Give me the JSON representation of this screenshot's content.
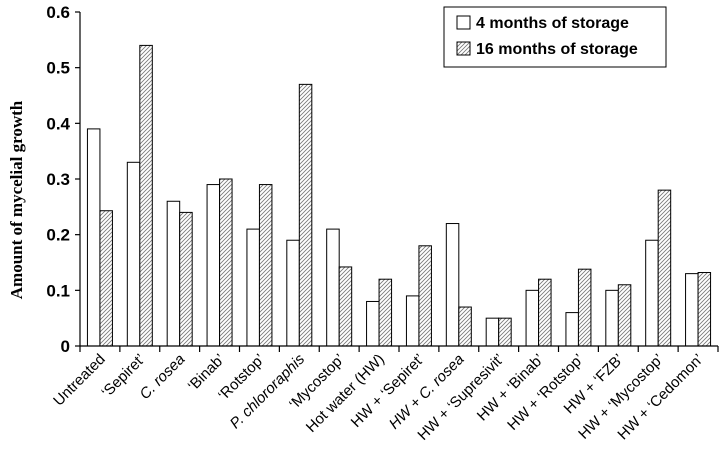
{
  "chart_data": {
    "type": "bar",
    "title": "",
    "xlabel": "",
    "ylabel": "Amount of mycelial growth",
    "ylim": [
      0,
      0.6
    ],
    "yticks": [
      "0",
      "0.1",
      "0.2",
      "0.3",
      "0.4",
      "0.5",
      "0.6"
    ],
    "grid": false,
    "legend_position": "top-right",
    "categories": [
      "Untreated",
      "‘Sepiret’",
      "C. rosea",
      "‘Binab’",
      "‘Rotstop’",
      "P. chlororaphis",
      "‘Mycostop’",
      "Hot water (HW)",
      "HW + ‘Sepiret’",
      "HW + C. rosea",
      "HW + ‘Supresivit’",
      "HW + ‘Binab’",
      "HW + ‘Rotstop’",
      "HW + ‘FZB’",
      "HW + ‘Mycostop’",
      "HW + ‘Cedomon’"
    ],
    "italic_categories": [
      2,
      5,
      9
    ],
    "series": [
      {
        "name": "4 months of storage",
        "fill": "#ffffff",
        "values": [
          0.39,
          0.33,
          0.26,
          0.29,
          0.21,
          0.19,
          0.21,
          0.08,
          0.09,
          0.22,
          0.05,
          0.1,
          0.06,
          0.1,
          0.19,
          0.13
        ]
      },
      {
        "name": "16 months of storage",
        "fill": "hatched",
        "values": [
          0.243,
          0.54,
          0.24,
          0.3,
          0.29,
          0.47,
          0.142,
          0.12,
          0.18,
          0.07,
          0.05,
          0.12,
          0.138,
          0.11,
          0.28,
          0.132
        ]
      }
    ]
  }
}
